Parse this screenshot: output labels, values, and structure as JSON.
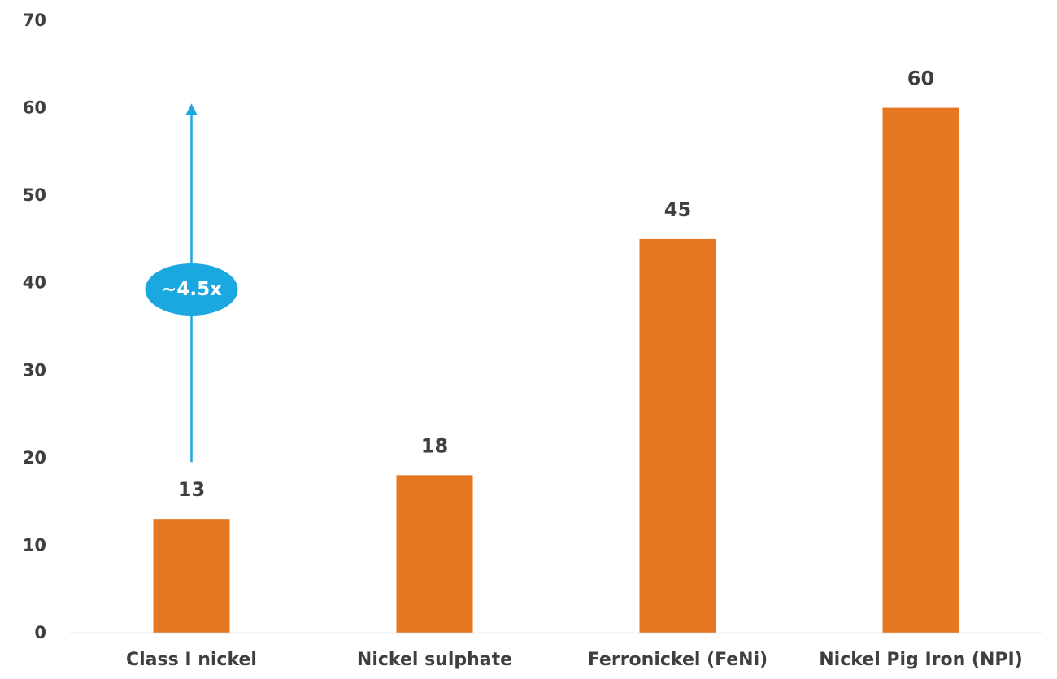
{
  "chart_data": {
    "type": "bar",
    "title": "",
    "xlabel": "",
    "ylabel": "",
    "categories": [
      "Class I nickel",
      "Nickel sulphate",
      "Ferronickel (FeNi)",
      "Nickel Pig Iron (NPI)"
    ],
    "values": [
      13,
      18,
      45,
      60
    ],
    "data_labels": [
      "13",
      "18",
      "45",
      "60"
    ],
    "ylim": [
      0,
      70
    ],
    "yticks": [
      0,
      10,
      20,
      30,
      40,
      50,
      60,
      70
    ],
    "grid": false,
    "legend": "none",
    "annotation": {
      "text": "~4.5x",
      "category_index": 0,
      "from_value": 19.5,
      "to_value": 60.5
    },
    "colors": {
      "bar": "#e67722",
      "annotation": "#1ba8e0",
      "axis_line": "#d9d9d9",
      "text": "#3f3f3f"
    }
  }
}
